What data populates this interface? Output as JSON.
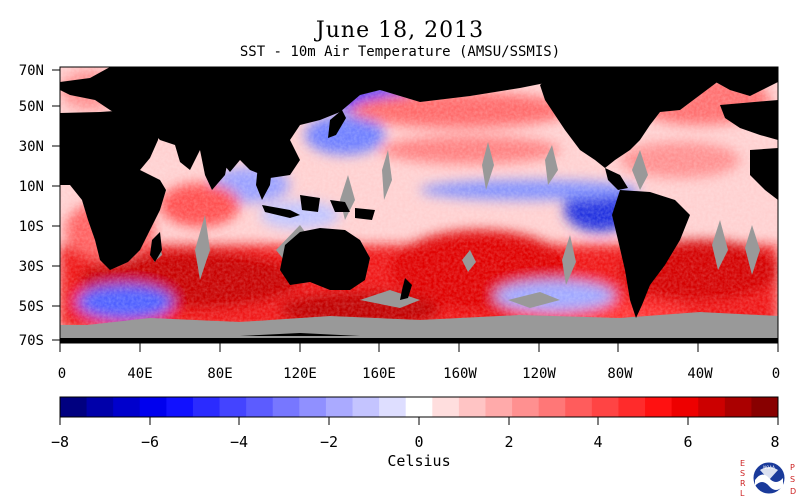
{
  "title": "June 18, 2013",
  "subtitle": "SST - 10m Air Temperature (AMSU/SSMIS)",
  "lat_labels": [
    "70N",
    "50N",
    "30N",
    "10N",
    "10S",
    "30S",
    "50S",
    "70S"
  ],
  "lon_labels": [
    "0",
    "40E",
    "80E",
    "120E",
    "160E",
    "160W",
    "120W",
    "80W",
    "40W",
    "0"
  ],
  "colorbar": {
    "label": "Celsius",
    "ticks": [
      "−8",
      "−6",
      "−4",
      "−2",
      "0",
      "2",
      "4",
      "6",
      "8"
    ],
    "min": -8,
    "max": 8,
    "colors": [
      "#000080",
      "#0000aa",
      "#0000cc",
      "#0000ee",
      "#1111ff",
      "#2b2bff",
      "#4444ff",
      "#5c5cff",
      "#7777ff",
      "#9090ff",
      "#aaaaff",
      "#c4c4ff",
      "#dedeff",
      "#ffffff",
      "#ffdede",
      "#ffc4c4",
      "#ffaaaa",
      "#ff9090",
      "#ff7777",
      "#ff5c5c",
      "#ff4444",
      "#ff2b2b",
      "#ff1111",
      "#ee0000",
      "#cc0000",
      "#aa0000",
      "#880000"
    ]
  },
  "logo": {
    "left_text": "ESRL",
    "right_text": "PSD",
    "center": "NOAA"
  }
}
